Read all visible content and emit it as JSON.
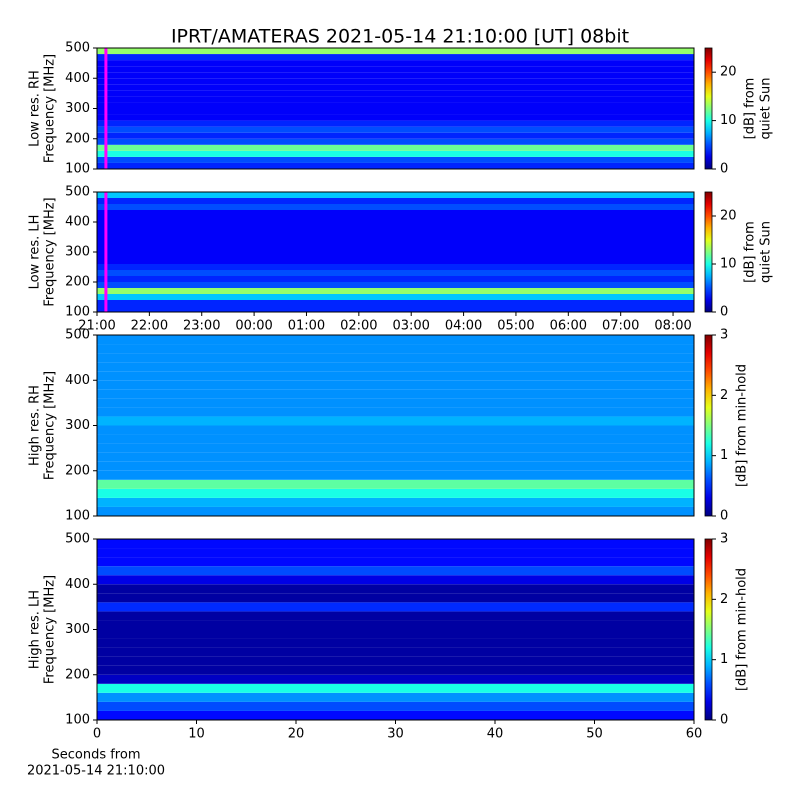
{
  "title": "IPRT/AMATERAS 2021-05-14 21:10:00 [UT]   08bit",
  "chart_data": [
    {
      "type": "heatmap",
      "ylabel": [
        "Low res. RH",
        "Frequency [MHz]"
      ],
      "colorbar_label": [
        "[dB] from",
        "quiet Sun"
      ],
      "cmap": "jet",
      "clim": [
        0,
        25
      ],
      "cticks": [
        0,
        10,
        20
      ],
      "ylim": [
        100,
        500
      ],
      "yticks": [
        100,
        200,
        300,
        400,
        500
      ],
      "y_bins": [
        100,
        120,
        140,
        160,
        180,
        200,
        220,
        240,
        260,
        280,
        300,
        320,
        340,
        360,
        380,
        400,
        420,
        440,
        460,
        480,
        500
      ],
      "values": [
        4,
        5,
        10,
        12,
        5,
        4,
        5,
        4,
        3,
        3,
        3,
        3,
        3,
        3,
        3,
        3,
        3,
        3,
        4,
        13
      ],
      "xlim": [
        0,
        11.4
      ],
      "marker_x": 0.17,
      "marker_color": "#ff00ff"
    },
    {
      "type": "heatmap",
      "ylabel": [
        "Low res. LH",
        "Frequency [MHz]"
      ],
      "colorbar_label": [
        "[dB] from",
        "quiet Sun"
      ],
      "cmap": "jet",
      "clim": [
        0,
        25
      ],
      "cticks": [
        0,
        10,
        20
      ],
      "ylim": [
        100,
        500
      ],
      "yticks": [
        100,
        200,
        300,
        400,
        500
      ],
      "y_bins": [
        100,
        120,
        140,
        160,
        180,
        200,
        220,
        240,
        260,
        280,
        300,
        320,
        340,
        360,
        380,
        400,
        420,
        440,
        460,
        480,
        500
      ],
      "values": [
        4,
        4,
        8,
        13,
        5,
        4,
        5,
        4,
        3,
        3,
        3,
        3,
        3,
        3,
        3,
        3,
        3,
        5,
        4,
        8
      ],
      "xlim": [
        0,
        11.4
      ],
      "marker_x": 0.17,
      "marker_color": "#ff00ff",
      "xticks": [
        {
          "value": 0,
          "label": "21:00"
        },
        {
          "value": 1,
          "label": "22:00"
        },
        {
          "value": 2,
          "label": "23:00"
        },
        {
          "value": 3,
          "label": "00:00"
        },
        {
          "value": 4,
          "label": "01:00"
        },
        {
          "value": 5,
          "label": "02:00"
        },
        {
          "value": 6,
          "label": "03:00"
        },
        {
          "value": 7,
          "label": "04:00"
        },
        {
          "value": 8,
          "label": "05:00"
        },
        {
          "value": 9,
          "label": "06:00"
        },
        {
          "value": 10,
          "label": "07:00"
        },
        {
          "value": 11,
          "label": "08:00"
        }
      ]
    },
    {
      "type": "heatmap",
      "ylabel": [
        "High res. RH",
        "Frequency [MHz]"
      ],
      "colorbar_label": [
        "[dB] from min-hold"
      ],
      "cmap": "jet",
      "clim": [
        0,
        3
      ],
      "cticks": [
        0,
        1,
        2,
        3
      ],
      "ylim": [
        100,
        500
      ],
      "yticks": [
        100,
        200,
        300,
        400,
        500
      ],
      "y_bins": [
        100,
        120,
        140,
        160,
        180,
        200,
        220,
        240,
        260,
        280,
        300,
        320,
        340,
        360,
        380,
        400,
        420,
        440,
        460,
        480,
        500
      ],
      "values": [
        0.8,
        0.9,
        1.2,
        1.4,
        0.8,
        0.8,
        0.8,
        0.8,
        0.8,
        0.8,
        0.9,
        0.8,
        0.8,
        0.8,
        0.8,
        0.8,
        0.8,
        0.8,
        0.8,
        0.8
      ],
      "xlim": [
        0,
        60
      ]
    },
    {
      "type": "heatmap",
      "ylabel": [
        "High res. LH",
        "Frequency [MHz]"
      ],
      "colorbar_label": [
        "[dB] from min-hold"
      ],
      "cmap": "jet",
      "clim": [
        0,
        3
      ],
      "cticks": [
        0,
        1,
        2,
        3
      ],
      "ylim": [
        100,
        500
      ],
      "yticks": [
        100,
        200,
        300,
        400,
        500
      ],
      "y_bins": [
        100,
        120,
        140,
        160,
        180,
        200,
        220,
        240,
        260,
        280,
        300,
        320,
        340,
        360,
        380,
        400,
        420,
        440,
        460,
        480,
        500
      ],
      "values": [
        0.4,
        0.6,
        0.8,
        1.2,
        0.2,
        0.1,
        0.1,
        0.1,
        0.1,
        0.1,
        0.1,
        0.1,
        0.5,
        0.1,
        0.1,
        0.3,
        0.6,
        0.4,
        0.4,
        0.4
      ],
      "xlim": [
        0,
        60
      ],
      "xticks": [
        0,
        10,
        20,
        30,
        40,
        50,
        60
      ],
      "xlabel": [
        "Seconds from",
        "2021-05-14 21:10:00"
      ]
    }
  ]
}
